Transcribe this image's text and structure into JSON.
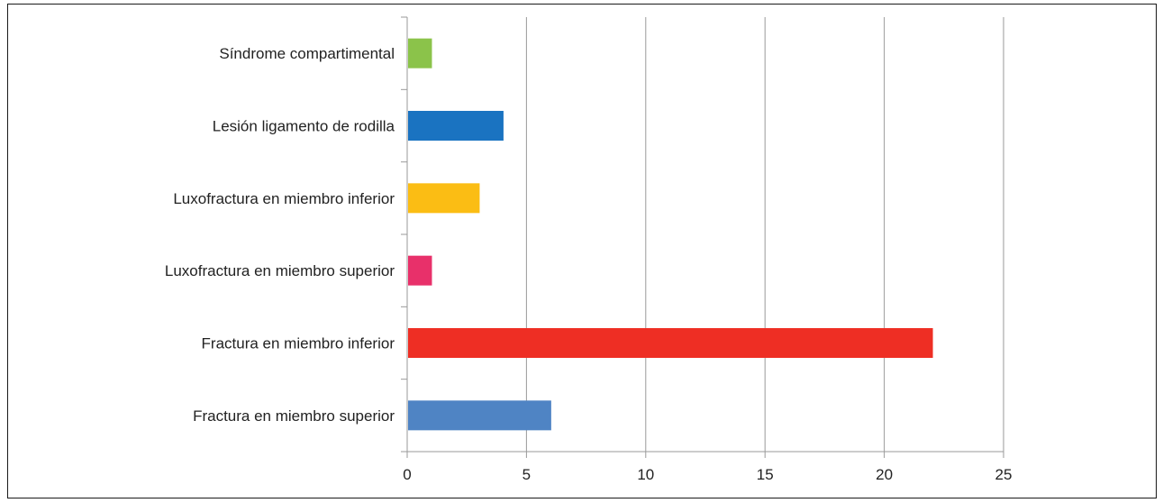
{
  "chart_data": {
    "type": "bar",
    "orientation": "horizontal",
    "title": "",
    "xlabel": "",
    "ylabel": "",
    "categories": [
      "Síndrome compartimental",
      "Lesión ligamento de rodilla",
      "Luxofractura en miembro inferior",
      "Luxofractura en miembro superior",
      "Fractura en miembro inferior",
      "Fractura en miembro superior"
    ],
    "values": [
      1,
      4,
      3,
      1,
      22,
      6
    ],
    "colors": [
      "#8bc34a",
      "#1a73c1",
      "#fbbd14",
      "#e8306a",
      "#ee2e24",
      "#4f84c4"
    ],
    "xlim": [
      0,
      25
    ],
    "x_ticks": [
      "0",
      "5",
      "10",
      "15",
      "20",
      "25"
    ],
    "grid": "vertical",
    "legend": "none"
  }
}
